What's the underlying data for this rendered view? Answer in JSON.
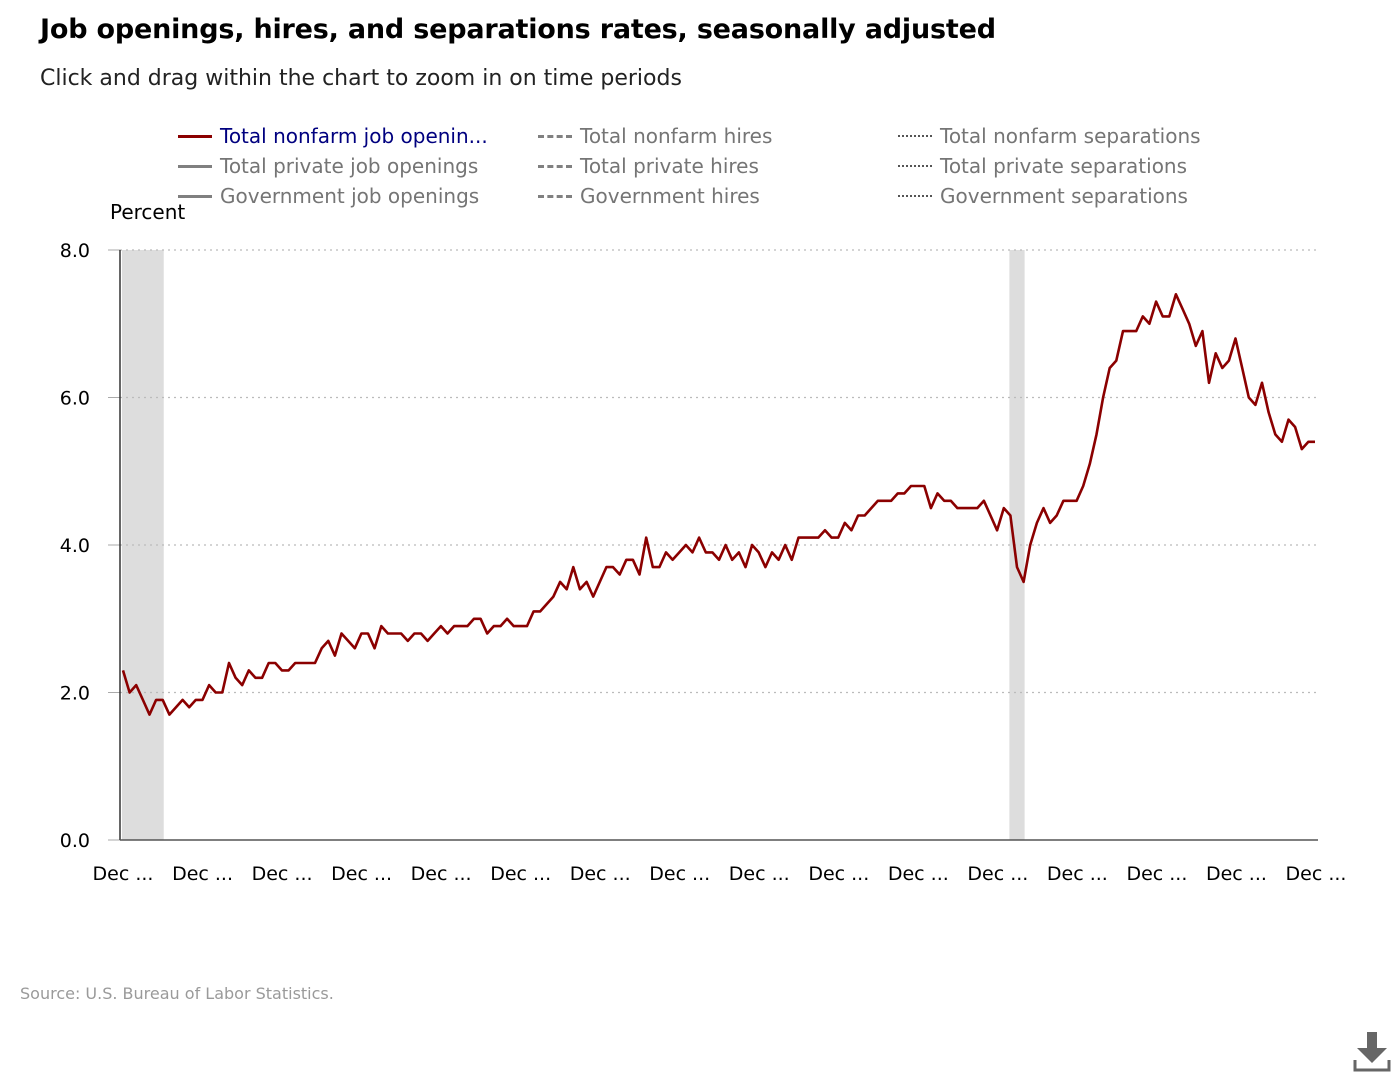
{
  "title": "Job openings, hires, and separations rates, seasonally adjusted",
  "subtitle": "Click and drag within the chart to zoom in on time periods",
  "source": "Source: U.S. Bureau of Labor Statistics.",
  "colors": {
    "series_active": "#8b0000",
    "series_inactive": "#808080",
    "recession": "#dddddd",
    "grid": "#bbbbbb"
  },
  "legend": [
    {
      "label": "Total nonfarm job openin...",
      "style": "solid",
      "active": true
    },
    {
      "label": "Total nonfarm hires",
      "style": "dashed",
      "active": false
    },
    {
      "label": "Total nonfarm separations",
      "style": "dotted",
      "active": false
    },
    {
      "label": "Total private job openings",
      "style": "solid",
      "active": false
    },
    {
      "label": "Total private hires",
      "style": "dashed",
      "active": false
    },
    {
      "label": "Total private separations",
      "style": "dotted",
      "active": false
    },
    {
      "label": "Government job openings",
      "style": "solid",
      "active": false
    },
    {
      "label": "Government hires",
      "style": "dashed",
      "active": false
    },
    {
      "label": "Government separations",
      "style": "dotted",
      "active": false
    }
  ],
  "icons": {
    "download": "download-icon"
  },
  "chart_data": {
    "type": "line",
    "ylabel": "Percent",
    "ylim": [
      0,
      8
    ],
    "yticks": [
      "0.0",
      "2.0",
      "4.0",
      "6.0",
      "8.0"
    ],
    "xtick_labels": [
      "Dec ...",
      "Dec ...",
      "Dec ...",
      "Dec ...",
      "Dec ...",
      "Dec ...",
      "Dec ...",
      "Dec ...",
      "Dec ...",
      "Dec ...",
      "Dec ...",
      "Dec ...",
      "Dec ...",
      "Dec ...",
      "Dec ...",
      "Dec ..."
    ],
    "grid": true,
    "legend_position": "top",
    "recession_bands_month_index": [
      [
        0,
        6
      ],
      [
        134,
        136
      ]
    ],
    "series": [
      {
        "name": "Total nonfarm job openin...",
        "values": [
          2.3,
          2.0,
          2.1,
          1.9,
          1.7,
          1.9,
          1.9,
          1.7,
          1.8,
          1.9,
          1.8,
          1.9,
          1.9,
          2.1,
          2.0,
          2.0,
          2.4,
          2.2,
          2.1,
          2.3,
          2.2,
          2.2,
          2.4,
          2.4,
          2.3,
          2.3,
          2.4,
          2.4,
          2.4,
          2.4,
          2.6,
          2.7,
          2.5,
          2.8,
          2.7,
          2.6,
          2.8,
          2.8,
          2.6,
          2.9,
          2.8,
          2.8,
          2.8,
          2.7,
          2.8,
          2.8,
          2.7,
          2.8,
          2.9,
          2.8,
          2.9,
          2.9,
          2.9,
          3.0,
          3.0,
          2.8,
          2.9,
          2.9,
          3.0,
          2.9,
          2.9,
          2.9,
          3.1,
          3.1,
          3.2,
          3.3,
          3.5,
          3.4,
          3.7,
          3.4,
          3.5,
          3.3,
          3.5,
          3.7,
          3.7,
          3.6,
          3.8,
          3.8,
          3.6,
          4.1,
          3.7,
          3.7,
          3.9,
          3.8,
          3.9,
          4.0,
          3.9,
          4.1,
          3.9,
          3.9,
          3.8,
          4.0,
          3.8,
          3.9,
          3.7,
          4.0,
          3.9,
          3.7,
          3.9,
          3.8,
          4.0,
          3.8,
          4.1,
          4.1,
          4.1,
          4.1,
          4.2,
          4.1,
          4.1,
          4.3,
          4.2,
          4.4,
          4.4,
          4.5,
          4.6,
          4.6,
          4.6,
          4.7,
          4.7,
          4.8,
          4.8,
          4.8,
          4.5,
          4.7,
          4.6,
          4.6,
          4.5,
          4.5,
          4.5,
          4.5,
          4.6,
          4.4,
          4.2,
          4.5,
          4.4,
          3.7,
          3.5,
          4.0,
          4.3,
          4.5,
          4.3,
          4.4,
          4.6,
          4.6,
          4.6,
          4.8,
          5.1,
          5.5,
          6.0,
          6.4,
          6.5,
          6.9,
          6.9,
          6.9,
          7.1,
          7.0,
          7.3,
          7.1,
          7.1,
          7.4,
          7.2,
          7.0,
          6.7,
          6.9,
          6.2,
          6.6,
          6.4,
          6.5,
          6.8,
          6.4,
          6.0,
          5.9,
          6.2,
          5.8,
          5.5,
          5.4,
          5.7,
          5.6,
          5.3,
          5.4,
          5.4
        ]
      }
    ]
  }
}
